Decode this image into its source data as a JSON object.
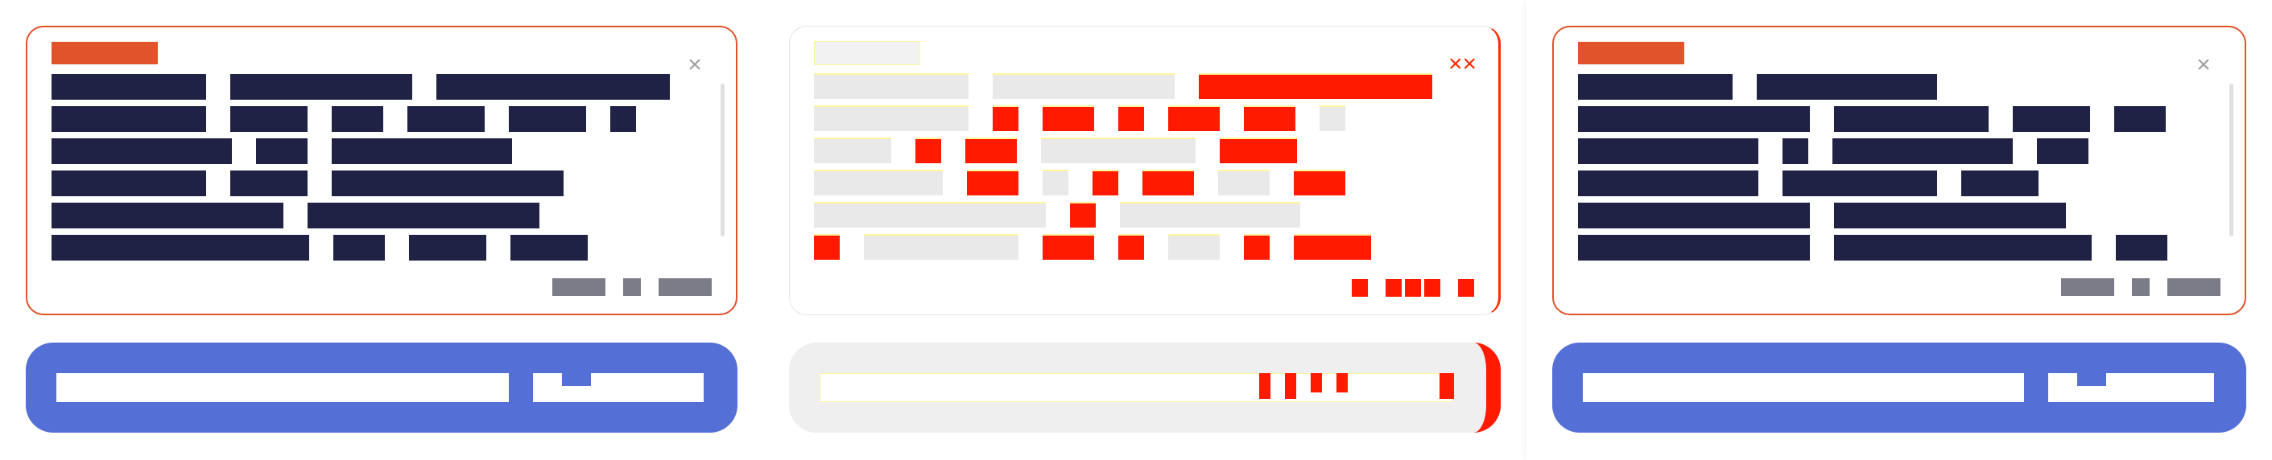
{
  "panels": [
    {
      "badge": "",
      "close_icon": "×",
      "lines": [
        [
          "",
          "",
          ""
        ],
        [
          "",
          "",
          "",
          "",
          "",
          ""
        ],
        [
          "",
          "",
          "",
          ""
        ],
        [
          "",
          "",
          "",
          ""
        ],
        [
          "",
          "",
          ""
        ],
        [
          "",
          "",
          "",
          "",
          ""
        ]
      ],
      "footer": [
        "",
        "",
        ""
      ],
      "input": {
        "value": "",
        "placeholder": ""
      },
      "send_label": ""
    },
    {
      "badge": "",
      "close_icon": "××",
      "lines": [
        [
          "",
          "",
          ""
        ],
        [
          "",
          "",
          "",
          "",
          "",
          "",
          ""
        ],
        [
          "",
          "",
          "",
          "",
          ""
        ],
        [
          "",
          "",
          "",
          "",
          "",
          "",
          ""
        ],
        [
          "",
          "",
          "",
          ""
        ],
        [
          "",
          "",
          "",
          "",
          "",
          "",
          ""
        ]
      ],
      "footer": [
        "",
        "",
        "",
        "",
        ""
      ],
      "input": {
        "value": "",
        "placeholder": ""
      },
      "send_label": ""
    },
    {
      "badge": "",
      "close_icon": "×",
      "lines": [
        [
          "",
          ""
        ],
        [
          "",
          "",
          "",
          ""
        ],
        [
          "",
          "",
          "",
          ""
        ],
        [
          "",
          "",
          ""
        ],
        [
          "",
          "",
          ""
        ],
        [
          "",
          "",
          "",
          ""
        ]
      ],
      "footer": [
        "",
        "",
        ""
      ],
      "input": {
        "value": "",
        "placeholder": ""
      },
      "send_label": ""
    }
  ]
}
